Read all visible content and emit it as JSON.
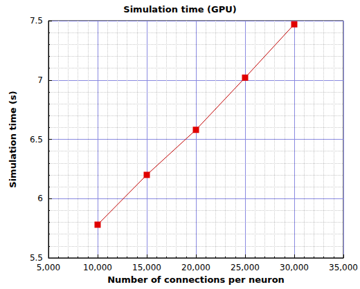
{
  "chart_data": {
    "type": "line",
    "title": "Simulation time (GPU)",
    "x_label": "Number of connections per neuron",
    "y_label": "Simulation time (s)",
    "x": [
      10000,
      15000,
      20000,
      25000,
      30000
    ],
    "series": [
      {
        "name": "Simulation time",
        "color": "#e00000",
        "marker": "square",
        "line_style": "solid",
        "values": [
          5.78,
          6.2,
          6.58,
          7.02,
          7.47
        ]
      }
    ],
    "xlim": [
      5000,
      35000
    ],
    "xticks": [
      {
        "value": 5000,
        "label": "5,000"
      },
      {
        "value": 10000,
        "label": "10,000"
      },
      {
        "value": 15000,
        "label": "15,000"
      },
      {
        "value": 20000,
        "label": "20,000"
      },
      {
        "value": 25000,
        "label": "25,000"
      },
      {
        "value": 30000,
        "label": "30,000"
      },
      {
        "value": 35000,
        "label": "35,000"
      }
    ],
    "ylim": [
      5.5,
      7.5
    ],
    "yticks": [
      5.5,
      6,
      6.5,
      7,
      7.5
    ],
    "grid": true
  }
}
